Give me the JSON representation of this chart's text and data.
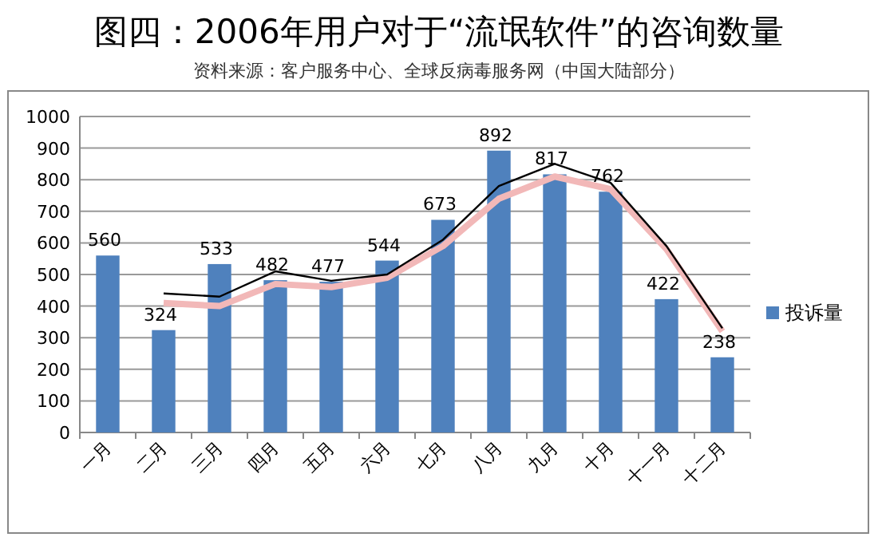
{
  "chart_data": {
    "type": "bar",
    "title": "图四：2006年用户对于“流氓软件”的咨询数量",
    "subtitle": "资料来源：客户服务中心、全球反病毒服务网（中国大陆部分）",
    "categories": [
      "一月",
      "二月",
      "三月",
      "四月",
      "五月",
      "六月",
      "七月",
      "八月",
      "九月",
      "十月",
      "十一月",
      "十二月"
    ],
    "series": [
      {
        "name": "投诉量",
        "color": "#4f81bd",
        "values": [
          560,
          324,
          533,
          482,
          477,
          544,
          673,
          892,
          817,
          762,
          422,
          238
        ],
        "value_labels": [
          "560",
          "324",
          "533",
          "482",
          "477",
          "544",
          "673",
          "892",
          "817",
          "762",
          "422",
          "238"
        ]
      },
      {
        "type": "line",
        "color": "#f2b8b8",
        "values": [
          null,
          410,
          400,
          470,
          460,
          490,
          590,
          740,
          810,
          770,
          580,
          320
        ]
      },
      {
        "type": "line",
        "color": "#000000",
        "values": [
          null,
          440,
          430,
          510,
          480,
          500,
          610,
          780,
          850,
          790,
          590,
          330
        ]
      }
    ],
    "ylim": [
      0,
      1000
    ],
    "yticks": [
      0,
      100,
      200,
      300,
      400,
      500,
      600,
      700,
      800,
      900,
      1000
    ],
    "grid": "y",
    "legend": "right",
    "marker": "none",
    "line_style": "solid"
  }
}
